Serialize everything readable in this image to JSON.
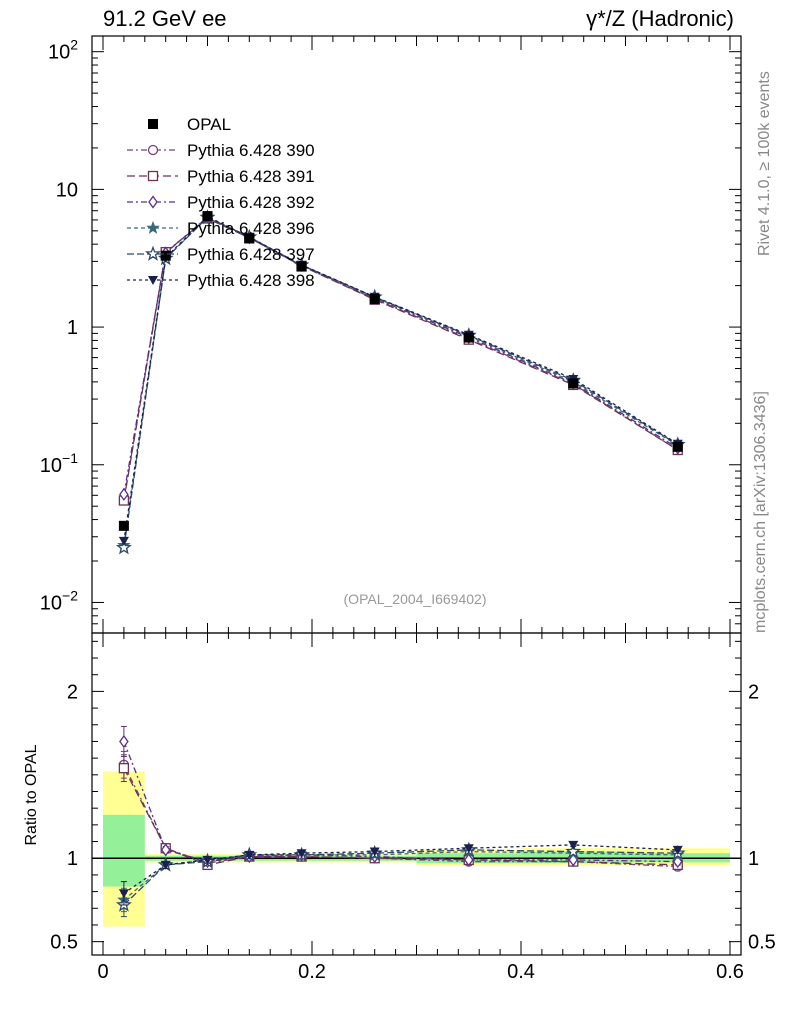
{
  "header": {
    "left": "91.2 GeV ee",
    "right": "γ*/Z (Hadronic)"
  },
  "side": {
    "rivet": "Rivet 4.1.0, ≥ 100k events",
    "mcplots": "mcplots.cern.ch [arXiv:1306.3436]"
  },
  "chart_data": {
    "type": "scatter",
    "analysis_label": "(OPAL_2004_I669402)",
    "x_range": [
      0,
      0.6
    ],
    "x_ticks": [
      {
        "value": 0,
        "label": "0"
      },
      {
        "value": 0.2,
        "label": "0.2"
      },
      {
        "value": 0.4,
        "label": "0.4"
      },
      {
        "value": 0.6,
        "label": "0.6"
      }
    ],
    "main": {
      "yscale": "log",
      "ylim": [
        0.006,
        130
      ],
      "y_ticks": [
        {
          "value": 0.01,
          "base": "10",
          "exp": "−2"
        },
        {
          "value": 0.1,
          "base": "10",
          "exp": "−1"
        },
        {
          "value": 1,
          "base": "1",
          "exp": ""
        },
        {
          "value": 10,
          "base": "10",
          "exp": ""
        },
        {
          "value": 100,
          "base": "10",
          "exp": "2"
        }
      ]
    },
    "ratio": {
      "ylabel": "Ratio to OPAL",
      "ylim": [
        0.42,
        2.35
      ],
      "y_ticks": [
        {
          "value": 0.5,
          "label": "0.5"
        },
        {
          "value": 1,
          "label": "1"
        },
        {
          "value": 2,
          "label": "2"
        }
      ],
      "band_green": [
        [
          0.0,
          0.04,
          0.83,
          1.26
        ],
        [
          0.04,
          0.3,
          0.985,
          1.015
        ],
        [
          0.3,
          0.4,
          0.97,
          1.03
        ],
        [
          0.4,
          0.5,
          0.97,
          1.04
        ],
        [
          0.5,
          0.6,
          0.975,
          1.03
        ]
      ],
      "band_yellow": [
        [
          0.0,
          0.04,
          0.59,
          1.52
        ],
        [
          0.04,
          0.3,
          0.975,
          1.025
        ],
        [
          0.3,
          0.4,
          0.955,
          1.05
        ],
        [
          0.4,
          0.5,
          0.955,
          1.06
        ],
        [
          0.5,
          0.6,
          0.955,
          1.06
        ]
      ]
    },
    "x": [
      0.02,
      0.06,
      0.1,
      0.14,
      0.19,
      0.26,
      0.35,
      0.45,
      0.55
    ],
    "data": {
      "name": "OPAL",
      "values": [
        0.036,
        3.3,
        6.4,
        4.4,
        2.75,
        1.6,
        0.84,
        0.39,
        0.135
      ]
    },
    "series": [
      {
        "name": "Pythia 6.428 390",
        "color": "#7b3f7b",
        "marker": "circle-open",
        "dash": "6,3,2,3",
        "values": [
          0.056,
          3.5,
          6.2,
          4.45,
          2.78,
          1.6,
          0.82,
          0.385,
          0.128
        ],
        "ratio": [
          1.56,
          1.06,
          0.97,
          1.01,
          1.01,
          1.0,
          0.98,
          0.98,
          0.95
        ],
        "ratio_err": [
          0.08,
          0.02,
          0.02,
          0.01,
          0.01,
          0.01,
          0.01,
          0.01,
          0.02
        ]
      },
      {
        "name": "Pythia 6.428 391",
        "color": "#6b3550",
        "marker": "square-open",
        "dash": "8,4",
        "values": [
          0.055,
          3.5,
          6.15,
          4.45,
          2.78,
          1.58,
          0.81,
          0.38,
          0.128
        ],
        "ratio": [
          1.54,
          1.06,
          0.96,
          1.01,
          1.01,
          1.0,
          0.99,
          0.98,
          0.96
        ],
        "ratio_err": [
          0.08,
          0.02,
          0.02,
          0.01,
          0.01,
          0.01,
          0.01,
          0.01,
          0.02
        ]
      },
      {
        "name": "Pythia 6.428 392",
        "color": "#5a2f8a",
        "marker": "diamond-open",
        "dash": "6,3,2,3",
        "values": [
          0.061,
          3.45,
          6.3,
          4.45,
          2.8,
          1.62,
          0.84,
          0.39,
          0.132
        ],
        "ratio": [
          1.7,
          1.05,
          0.98,
          1.01,
          1.02,
          1.01,
          0.99,
          0.99,
          0.98
        ],
        "ratio_err": [
          0.09,
          0.02,
          0.02,
          0.01,
          0.01,
          0.01,
          0.01,
          0.01,
          0.02
        ]
      },
      {
        "name": "Pythia 6.428 396",
        "color": "#3a6a7a",
        "marker": "star-filled",
        "dash": "4,3",
        "values": [
          0.026,
          3.15,
          6.3,
          4.5,
          2.82,
          1.64,
          0.86,
          0.4,
          0.138
        ],
        "ratio": [
          0.75,
          0.96,
          0.99,
          1.02,
          1.02,
          1.02,
          1.04,
          1.03,
          1.02
        ],
        "ratio_err": [
          0.07,
          0.02,
          0.02,
          0.01,
          0.01,
          0.01,
          0.01,
          0.01,
          0.02
        ]
      },
      {
        "name": "Pythia 6.428 397",
        "color": "#2e4a6a",
        "marker": "star-open",
        "dash": "7,3",
        "values": [
          0.025,
          3.15,
          6.25,
          4.5,
          2.82,
          1.65,
          0.87,
          0.41,
          0.14
        ],
        "ratio": [
          0.72,
          0.96,
          0.98,
          1.02,
          1.02,
          1.03,
          1.05,
          1.04,
          1.03
        ],
        "ratio_err": [
          0.07,
          0.02,
          0.02,
          0.01,
          0.01,
          0.01,
          0.01,
          0.01,
          0.02
        ]
      },
      {
        "name": "Pythia 6.428 398",
        "color": "#1a2050",
        "marker": "triangle-down-filled",
        "dash": "3,3",
        "values": [
          0.028,
          3.2,
          6.35,
          4.5,
          2.83,
          1.66,
          0.88,
          0.42,
          0.142
        ],
        "ratio": [
          0.79,
          0.96,
          0.99,
          1.02,
          1.03,
          1.04,
          1.06,
          1.08,
          1.05
        ],
        "ratio_err": [
          0.07,
          0.02,
          0.02,
          0.01,
          0.01,
          0.01,
          0.01,
          0.01,
          0.02
        ]
      }
    ]
  }
}
